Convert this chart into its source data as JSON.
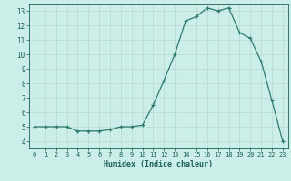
{
  "x": [
    0,
    1,
    2,
    3,
    4,
    5,
    6,
    7,
    8,
    9,
    10,
    11,
    12,
    13,
    14,
    15,
    16,
    17,
    18,
    19,
    20,
    21,
    22,
    23
  ],
  "y": [
    5.0,
    5.0,
    5.0,
    5.0,
    4.7,
    4.7,
    4.7,
    4.8,
    5.0,
    5.0,
    5.1,
    6.5,
    8.2,
    10.0,
    12.3,
    12.6,
    13.2,
    13.0,
    13.2,
    11.5,
    11.1,
    9.5,
    6.8,
    4.0
  ],
  "xlabel": "Humidex (Indice chaleur)",
  "xlim": [
    -0.5,
    23.5
  ],
  "ylim": [
    3.5,
    13.5
  ],
  "yticks": [
    4,
    5,
    6,
    7,
    8,
    9,
    10,
    11,
    12,
    13
  ],
  "xticks": [
    0,
    1,
    2,
    3,
    4,
    5,
    6,
    7,
    8,
    9,
    10,
    11,
    12,
    13,
    14,
    15,
    16,
    17,
    18,
    19,
    20,
    21,
    22,
    23
  ],
  "line_color": "#2d7a6e",
  "bg_color": "#cceee8",
  "grid_color": "#b8d8d0",
  "tick_color": "#1a5f5a"
}
